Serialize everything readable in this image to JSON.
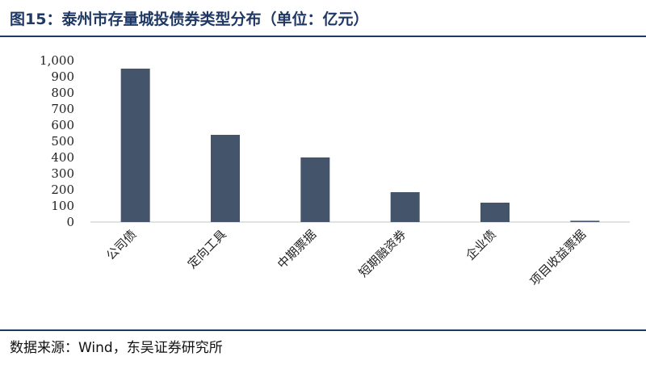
{
  "header": {
    "title": "图15：泰州市存量城投债券类型分布（单位：亿元）"
  },
  "footer": {
    "source": "数据来源：Wind，东吴证券研究所"
  },
  "colors": {
    "accent": "#1f3864",
    "bar": "#44546a",
    "axis": "#d9d9d9"
  },
  "chart_data": {
    "type": "bar",
    "categories": [
      "公司债",
      "定向工具",
      "中期票据",
      "短期融资券",
      "企业债",
      "项目收益票据"
    ],
    "values": [
      950,
      540,
      400,
      185,
      120,
      8
    ],
    "ylim": [
      0,
      1000
    ],
    "yticks": [
      0,
      100,
      200,
      300,
      400,
      500,
      600,
      700,
      800,
      900,
      1000
    ],
    "ytick_labels": [
      "0",
      "100",
      "200",
      "300",
      "400",
      "500",
      "600",
      "700",
      "800",
      "900",
      "1,000"
    ],
    "grid": false,
    "legend": "none",
    "xlabel": "",
    "ylabel": ""
  }
}
